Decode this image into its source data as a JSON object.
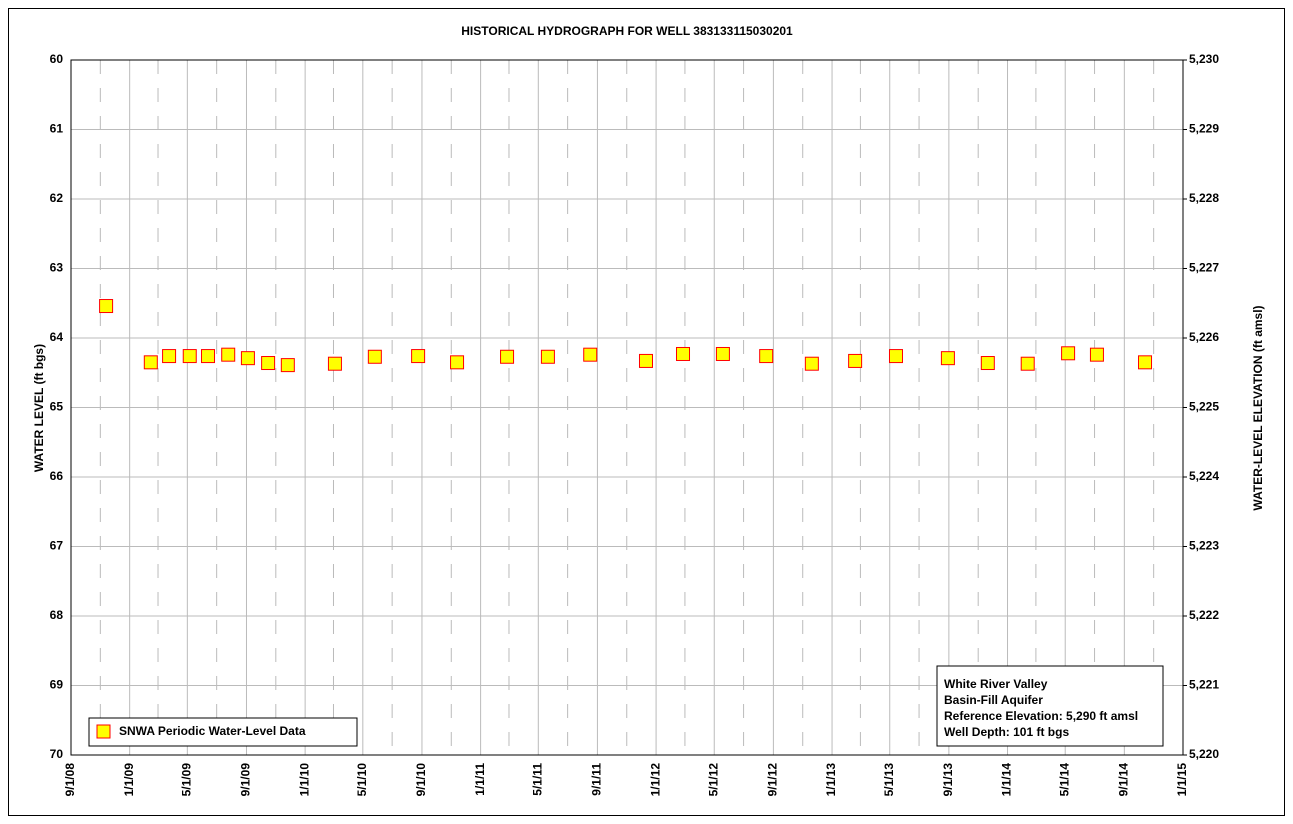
{
  "chart_data": {
    "type": "scatter",
    "title": "HISTORICAL HYDROGRAPH FOR WELL 383133115030201",
    "y_label": "WATER LEVEL (ft bgs)",
    "y2_label": "WATER-LEVEL ELEVATION (ft amsl)",
    "ylim": [
      70,
      60
    ],
    "yticks": [
      60,
      61,
      62,
      63,
      64,
      65,
      66,
      67,
      68,
      69,
      70
    ],
    "y2lim": [
      5220,
      5230
    ],
    "y2ticks": [
      {
        "value": 5230,
        "label": "5,230"
      },
      {
        "value": 5229,
        "label": "5,229"
      },
      {
        "value": 5228,
        "label": "5,228"
      },
      {
        "value": 5227,
        "label": "5,227"
      },
      {
        "value": 5226,
        "label": "5,226"
      },
      {
        "value": 5225,
        "label": "5,225"
      },
      {
        "value": 5224,
        "label": "5,224"
      },
      {
        "value": 5223,
        "label": "5,223"
      },
      {
        "value": 5222,
        "label": "5,222"
      },
      {
        "value": 5221,
        "label": "5,221"
      },
      {
        "value": 5220,
        "label": "5,220"
      }
    ],
    "xlim": [
      "2008-09-01",
      "2015-01-01"
    ],
    "xticks": [
      {
        "value": "2008-09-01",
        "label": "9/1/08"
      },
      {
        "value": "2009-01-01",
        "label": "1/1/09"
      },
      {
        "value": "2009-05-01",
        "label": "5/1/09"
      },
      {
        "value": "2009-09-01",
        "label": "9/1/09"
      },
      {
        "value": "2010-01-01",
        "label": "1/1/10"
      },
      {
        "value": "2010-05-01",
        "label": "5/1/10"
      },
      {
        "value": "2010-09-01",
        "label": "9/1/10"
      },
      {
        "value": "2011-01-01",
        "label": "1/1/11"
      },
      {
        "value": "2011-05-01",
        "label": "5/1/11"
      },
      {
        "value": "2011-09-01",
        "label": "9/1/11"
      },
      {
        "value": "2012-01-01",
        "label": "1/1/12"
      },
      {
        "value": "2012-05-01",
        "label": "5/1/12"
      },
      {
        "value": "2012-09-01",
        "label": "9/1/12"
      },
      {
        "value": "2013-01-01",
        "label": "1/1/13"
      },
      {
        "value": "2013-05-01",
        "label": "5/1/13"
      },
      {
        "value": "2013-09-01",
        "label": "9/1/13"
      },
      {
        "value": "2014-01-01",
        "label": "1/1/14"
      },
      {
        "value": "2014-05-01",
        "label": "5/1/14"
      },
      {
        "value": "2014-09-01",
        "label": "9/1/14"
      },
      {
        "value": "2015-01-01",
        "label": "1/1/15"
      }
    ],
    "xminorticks": [
      "2008-11-01",
      "2009-03-01",
      "2009-07-01",
      "2009-11-01",
      "2010-03-01",
      "2010-07-01",
      "2010-11-01",
      "2011-03-01",
      "2011-07-01",
      "2011-11-01",
      "2012-03-01",
      "2012-07-01",
      "2012-11-01",
      "2013-03-01",
      "2013-07-01",
      "2013-11-01",
      "2014-03-01",
      "2014-07-01",
      "2014-11-01"
    ],
    "grid": true,
    "legend": "lower left",
    "series": [
      {
        "name": "SNWA Periodic Water-Level Data",
        "color": "#ffff00",
        "edgecolor": "#ff0000",
        "x": [
          "2008-11-13",
          "2009-02-14",
          "2009-03-24",
          "2009-05-06",
          "2009-06-13",
          "2009-07-25",
          "2009-09-04",
          "2009-10-16",
          "2009-11-26",
          "2010-03-04",
          "2010-05-26",
          "2010-08-24",
          "2010-11-13",
          "2011-02-25",
          "2011-05-21",
          "2011-08-17",
          "2011-12-11",
          "2012-02-26",
          "2012-05-19",
          "2012-08-17",
          "2012-11-20",
          "2013-02-18",
          "2013-05-14",
          "2013-08-30",
          "2013-11-21",
          "2014-02-12",
          "2014-05-07",
          "2014-07-06",
          "2014-10-14"
        ],
        "values": [
          63.54,
          64.35,
          64.26,
          64.26,
          64.26,
          64.24,
          64.29,
          64.36,
          64.39,
          64.37,
          64.27,
          64.26,
          64.35,
          64.27,
          64.27,
          64.24,
          64.33,
          64.23,
          64.23,
          64.26,
          64.37,
          64.33,
          64.26,
          64.29,
          64.36,
          64.37,
          64.22,
          64.24,
          64.35
        ]
      }
    ],
    "annotation": [
      "White River Valley",
      "Basin-Fill Aquifer",
      "Reference Elevation: 5,290 ft amsl",
      "Well Depth: 101 ft bgs"
    ]
  }
}
